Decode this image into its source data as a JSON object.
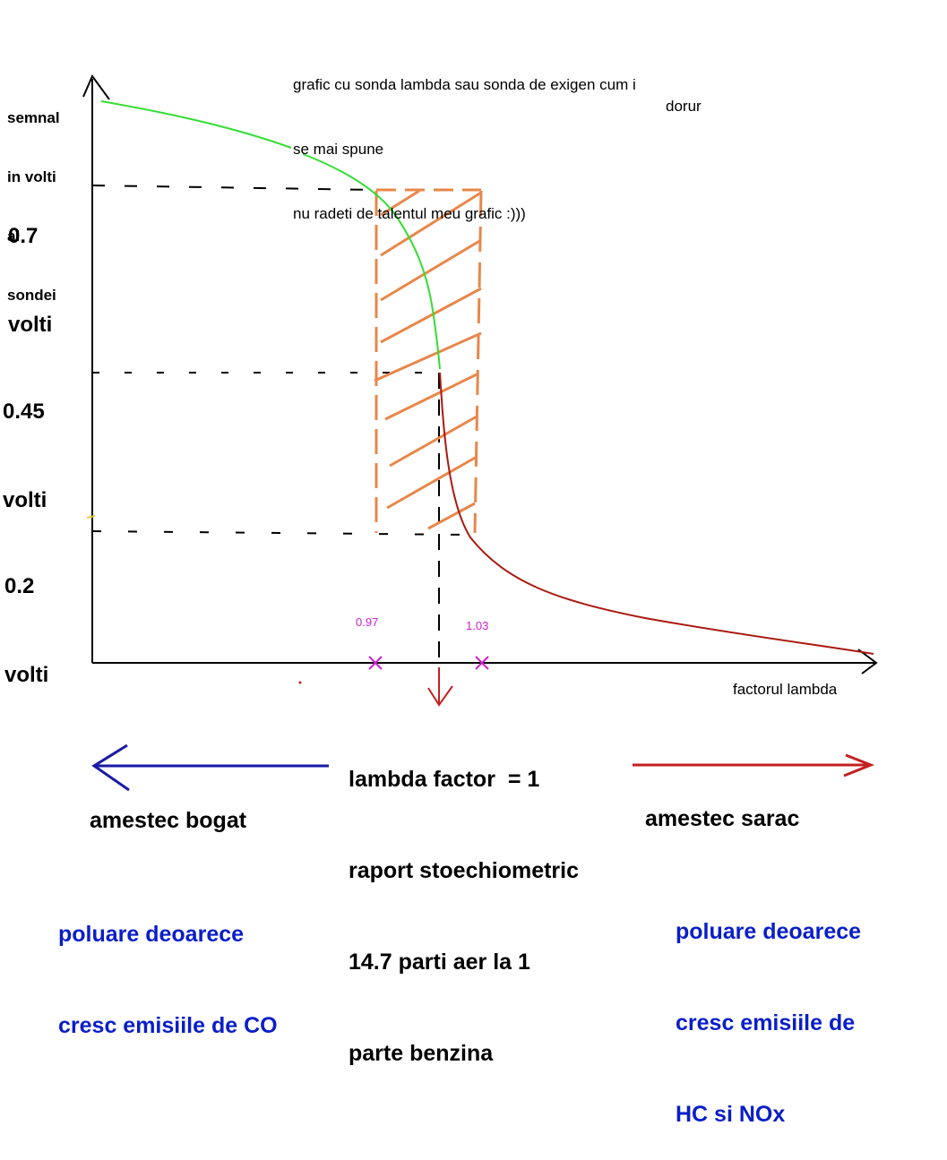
{
  "title_lines": [
    "grafic cu sonda lambda sau sonda de exigen cum i",
    "se mai spune",
    "nu radeti de talentul meu grafic :)))"
  ],
  "author": "dorur",
  "y_axis_label_lines": [
    "semnal",
    "in volti",
    "al",
    "sondei"
  ],
  "x_axis_label": "factorul lambda",
  "levels": [
    {
      "value_line": "0.7",
      "unit_line": "volti"
    },
    {
      "value_line": "0.45",
      "unit_line": "volti"
    },
    {
      "value_line": "0.2",
      "unit_line": "volti"
    }
  ],
  "lambda_ticks": [
    "0.97",
    "1.03"
  ],
  "center_text_lines": [
    "lambda factor  = 1",
    "raport stoechiometric",
    "14.7 parti aer la 1",
    "parte benzina"
  ],
  "left_label": "amestec bogat",
  "right_label": "amestec sarac",
  "left_note_lines": [
    "poluare deoarece",
    "cresc emisiile de CO"
  ],
  "right_note_lines": [
    "poluare deoarece",
    "cresc emisiile de",
    "HC si NOx"
  ],
  "colors": {
    "rich_curve": "#33dd33",
    "lean_curve": "#aa1a10",
    "window_band": "#e8874a",
    "ticks": "#cc22cc",
    "rich_arrow": "#1a1aa8",
    "lean_arrow": "#c42020",
    "notes": "#0a1ec8"
  }
}
